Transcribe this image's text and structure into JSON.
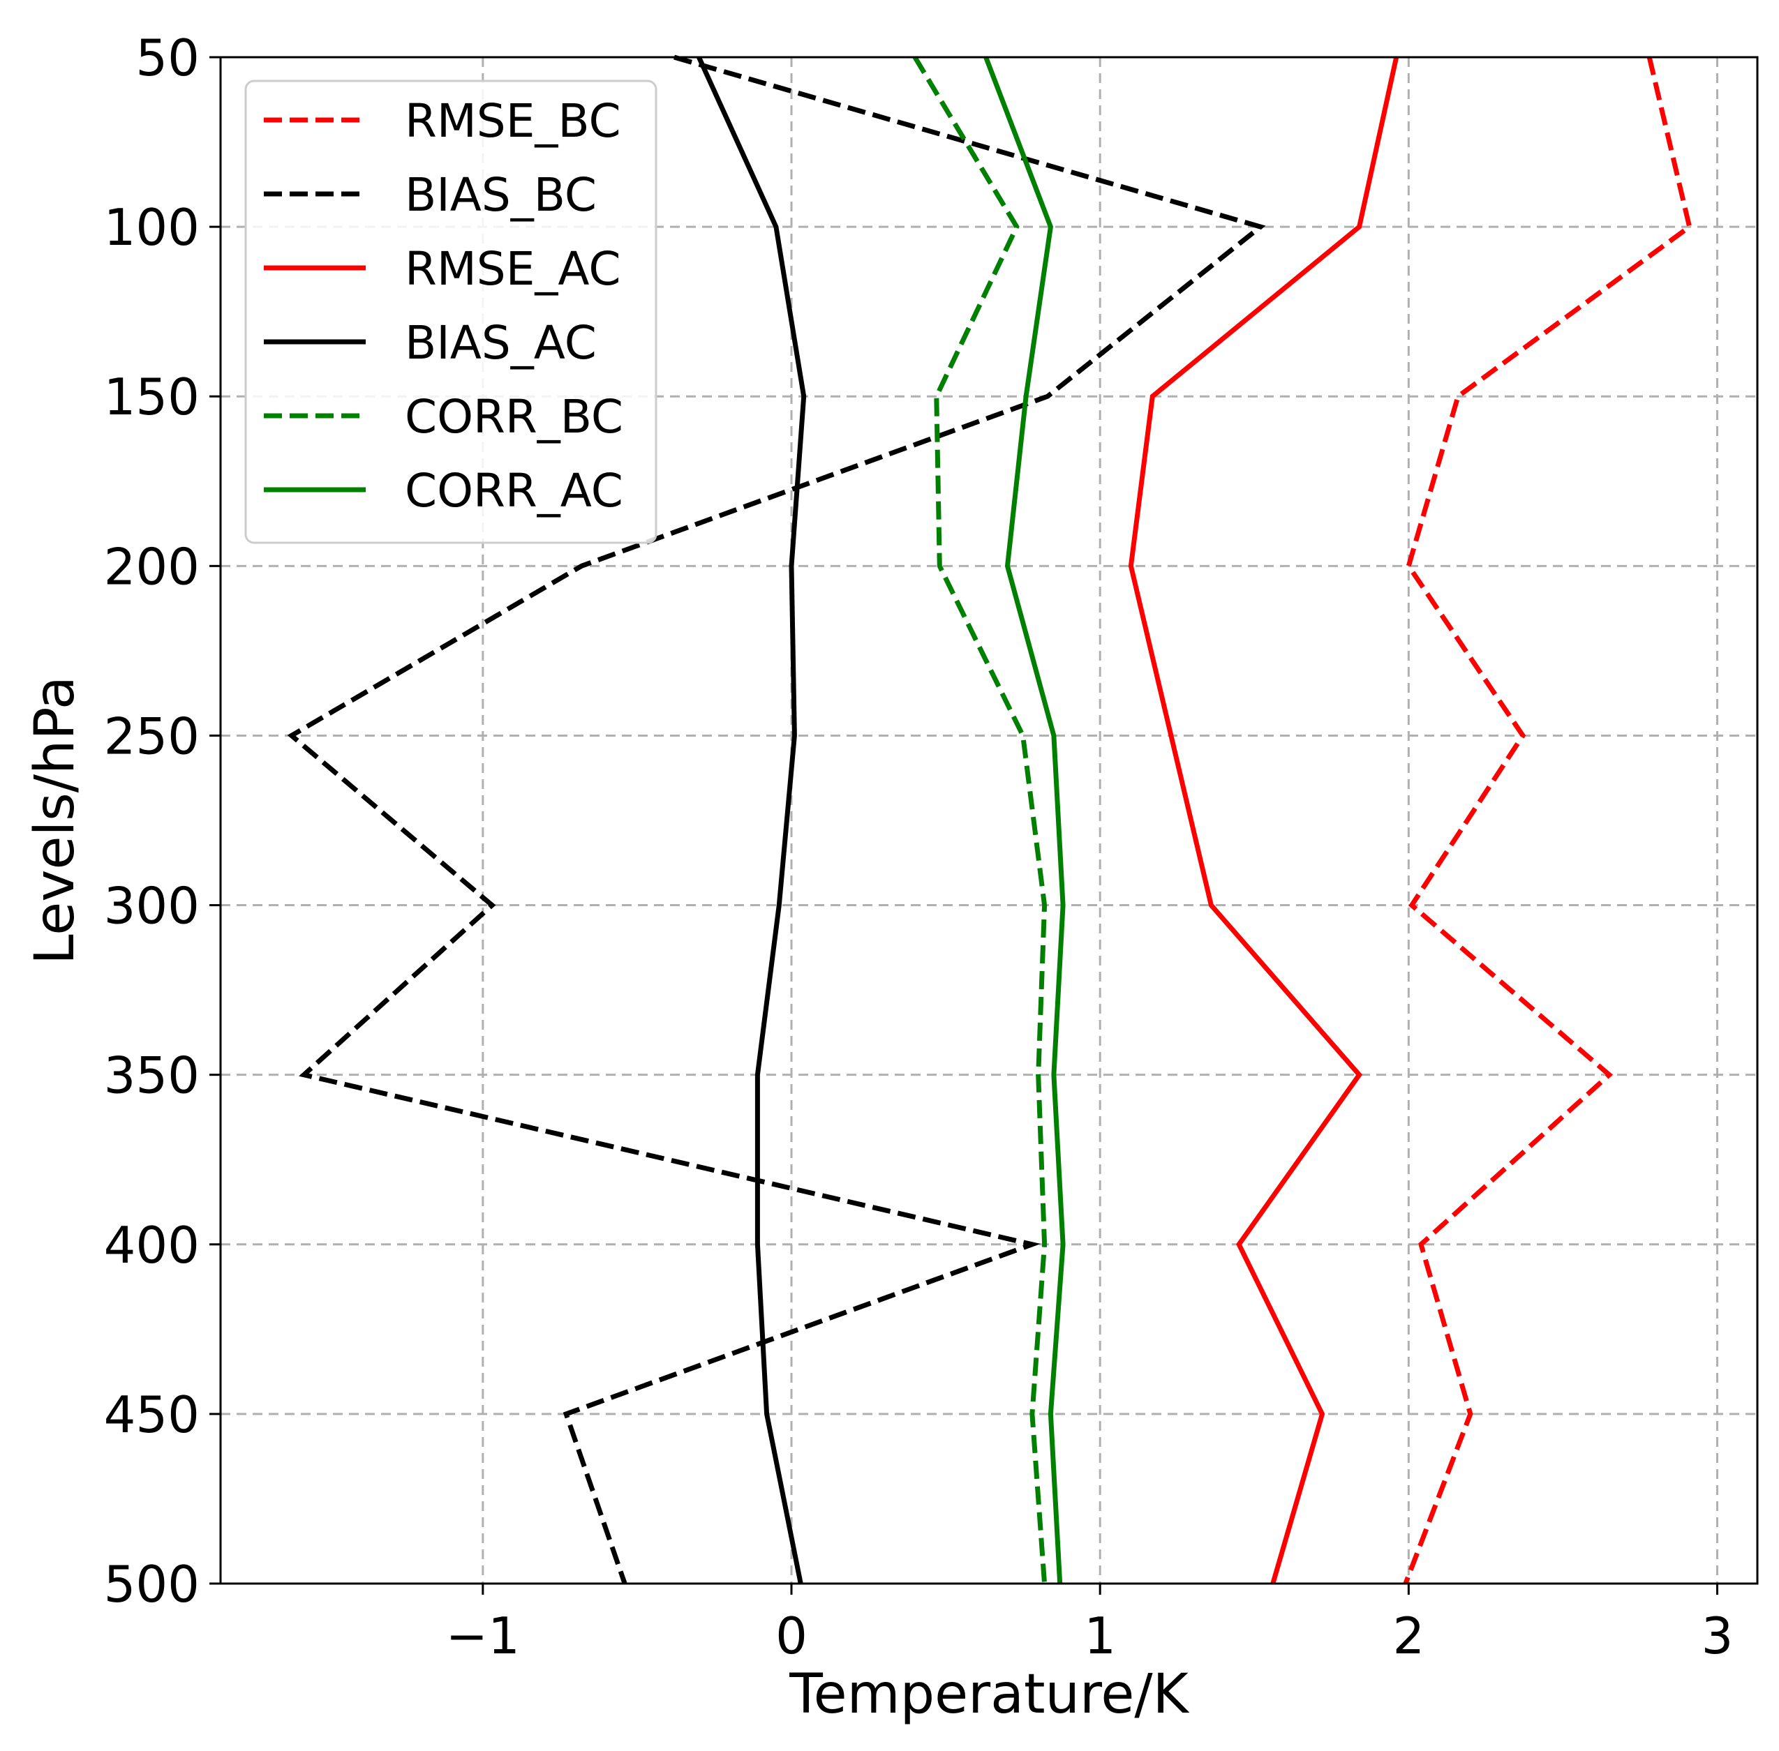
{
  "chart_data": {
    "type": "line",
    "title": "",
    "xlabel": "Temperature/K",
    "ylabel": "Levels/hPa",
    "xlim": [
      -1.85,
      3.13
    ],
    "ylim": [
      50,
      500
    ],
    "y_inverted": true,
    "grid": true,
    "legend_position": "top-left",
    "x_ticks": [
      -1,
      0,
      1,
      2,
      3
    ],
    "x_tick_labels": [
      "−1",
      "0",
      "1",
      "2",
      "3"
    ],
    "y_ticks": [
      50,
      100,
      150,
      200,
      250,
      300,
      350,
      400,
      450,
      500
    ],
    "y_tick_labels": [
      "50",
      "100",
      "150",
      "200",
      "250",
      "300",
      "350",
      "400",
      "450",
      "500"
    ],
    "series": [
      {
        "name": "RMSE_BC",
        "color": "#ff0000",
        "style": "dashed",
        "points": [
          [
            2.78,
            50
          ],
          [
            2.91,
            100
          ],
          [
            2.16,
            150
          ],
          [
            2.0,
            200
          ],
          [
            2.37,
            250
          ],
          [
            2.01,
            300
          ],
          [
            2.65,
            350
          ],
          [
            2.04,
            400
          ],
          [
            2.2,
            450
          ],
          [
            1.99,
            500
          ]
        ]
      },
      {
        "name": "BIAS_BC",
        "color": "#000000",
        "style": "dashed",
        "points": [
          [
            -0.38,
            50
          ],
          [
            1.52,
            100
          ],
          [
            0.83,
            150
          ],
          [
            -0.68,
            200
          ],
          [
            -1.62,
            250
          ],
          [
            -0.97,
            300
          ],
          [
            -1.58,
            350
          ],
          [
            0.78,
            400
          ],
          [
            -0.73,
            450
          ],
          [
            -0.54,
            500
          ]
        ]
      },
      {
        "name": "RMSE_AC",
        "color": "#ff0000",
        "style": "solid",
        "points": [
          [
            1.96,
            50
          ],
          [
            1.84,
            100
          ],
          [
            1.17,
            150
          ],
          [
            1.1,
            200
          ],
          [
            1.23,
            250
          ],
          [
            1.36,
            300
          ],
          [
            1.84,
            350
          ],
          [
            1.45,
            400
          ],
          [
            1.72,
            450
          ],
          [
            1.56,
            500
          ]
        ]
      },
      {
        "name": "BIAS_AC",
        "color": "#000000",
        "style": "solid",
        "points": [
          [
            -0.3,
            50
          ],
          [
            -0.05,
            100
          ],
          [
            0.04,
            150
          ],
          [
            0.0,
            200
          ],
          [
            0.01,
            250
          ],
          [
            -0.04,
            300
          ],
          [
            -0.11,
            350
          ],
          [
            -0.11,
            400
          ],
          [
            -0.08,
            450
          ],
          [
            0.03,
            500
          ]
        ]
      },
      {
        "name": "CORR_BC",
        "color": "#008000",
        "style": "dashed",
        "points": [
          [
            0.4,
            50
          ],
          [
            0.73,
            100
          ],
          [
            0.47,
            150
          ],
          [
            0.48,
            200
          ],
          [
            0.75,
            250
          ],
          [
            0.82,
            300
          ],
          [
            0.8,
            350
          ],
          [
            0.82,
            400
          ],
          [
            0.78,
            450
          ],
          [
            0.82,
            500
          ]
        ]
      },
      {
        "name": "CORR_AC",
        "color": "#008000",
        "style": "solid",
        "points": [
          [
            0.63,
            50
          ],
          [
            0.84,
            100
          ],
          [
            0.76,
            150
          ],
          [
            0.7,
            200
          ],
          [
            0.85,
            250
          ],
          [
            0.88,
            300
          ],
          [
            0.85,
            350
          ],
          [
            0.88,
            400
          ],
          [
            0.84,
            450
          ],
          [
            0.87,
            500
          ]
        ]
      }
    ]
  }
}
